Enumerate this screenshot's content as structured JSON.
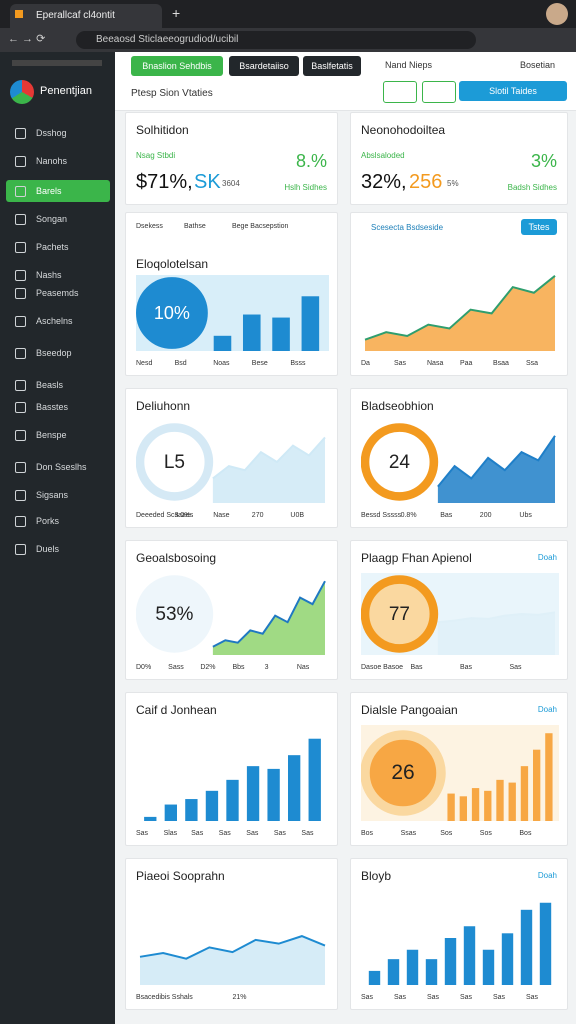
{
  "browser": {
    "tab_title": "Eperallcaf cl4ontit",
    "url": "Beeaosd Sticlaeeogrudiod/ucibil"
  },
  "sidebar": {
    "brand": "Penentjian",
    "items": [
      "Dsshog",
      "Nanohs",
      "Barels",
      "Songan",
      "Pachets",
      "Nashs",
      "Peasemds",
      "Aschelns",
      "Bseedop",
      "Beasls",
      "Basstes",
      "Benspe",
      "Don Sseslhs",
      "Sigsans",
      "Porks",
      "Duels"
    ],
    "active": 2
  },
  "toolbar": {
    "buttons": [
      "Bnaslion Sehdbis",
      "Bsardetaiiso",
      "Baslfetatis"
    ],
    "search": "Nand Nieps",
    "account": "Bosetian",
    "subtitle": "Ptesp Sion Vtaties",
    "action": "Slotil Taides"
  },
  "kpis": [
    {
      "title": "Solhitidon",
      "label": "Nsag Stbdi",
      "value_a": "$71%,",
      "value_b": "SK",
      "sub": "3604",
      "delta": "8.%",
      "note": "Hslh Sidhes"
    },
    {
      "title": "Neonohodoiltea",
      "label": "Abslsaloded",
      "value_a": "32%,",
      "value_b": "256",
      "sub": "5%",
      "delta": "3%",
      "note": "Badsh Sidhes"
    }
  ],
  "cards": [
    {
      "title": "Eloqolotelsan",
      "filters": [
        "Dsekess",
        "Bathse",
        "Bege Bacsepstion"
      ],
      "chart": {
        "kind": "bars",
        "gauge": {
          "label": "10%",
          "fill": "#1e8bd1",
          "ring": "#1e8bd1",
          "text": "#ffffff"
        },
        "values": [
          10,
          24,
          22,
          36
        ],
        "color": "#1e8bd1",
        "bg": "#d8eef9",
        "ylim": [
          0,
          50
        ]
      },
      "legend": [
        "Nesd",
        "Bsd",
        "Noas",
        "Bese",
        "Bsss"
      ]
    },
    {
      "title": "Scesecta Bsdseside",
      "button": "Tstes",
      "chart": {
        "kind": "area",
        "values": [
          12,
          20,
          16,
          28,
          24,
          44,
          40,
          68,
          62,
          80
        ],
        "color": "#f7a744",
        "line": "#2f9e6e",
        "bg": "#ffffff",
        "ylim": [
          0,
          100
        ]
      },
      "legend": [
        "Da",
        "Sas",
        "Nasa",
        "Paa",
        "Bsaa",
        "Ssa"
      ]
    },
    {
      "title": "Deliuhonn",
      "chart": {
        "kind": "area",
        "gauge": {
          "label": "L5",
          "fill": "#ffffff",
          "ring": "#d5e9f5",
          "text": "#222222"
        },
        "values": [
          30,
          45,
          40,
          62,
          50,
          70,
          58,
          80
        ],
        "color": "#cfe9f6",
        "line": "#cfe9f6",
        "bg": "#ffffff",
        "ylim": [
          0,
          100
        ]
      },
      "legend": [
        "Deeeded Scsaaes",
        "3.0%",
        "Nase",
        "270",
        "U0B"
      ]
    },
    {
      "title": "Bladseobhion",
      "chart": {
        "kind": "area",
        "gauge": {
          "label": "24",
          "fill": "#ffffff",
          "ring": "#f39a1f",
          "text": "#222222"
        },
        "values": [
          20,
          45,
          30,
          55,
          40,
          62,
          52,
          82
        ],
        "color": "#1f7fc8",
        "line": "#1f7fc8",
        "bg": "#ffffff",
        "ylim": [
          0,
          100
        ]
      },
      "legend": [
        "Bessd Sssss",
        "0.8%",
        "Bas",
        "200",
        "Ubs"
      ]
    },
    {
      "title": "Geoalsbosoing",
      "chart": {
        "kind": "area",
        "gauge": {
          "label": "53%",
          "fill": "#eef6fb",
          "ring": "#eef6fb",
          "text": "#222222"
        },
        "values": [
          10,
          18,
          15,
          30,
          26,
          48,
          40,
          70,
          62,
          90
        ],
        "color": "#8fd36f",
        "line": "#1f78c2",
        "bg": "#ffffff",
        "ylim": [
          0,
          100
        ]
      },
      "legend": [
        "D0%",
        "Sass",
        "D2%",
        "Bbs",
        "3",
        "Nas"
      ]
    },
    {
      "title": "Plaagp Fhan Apienol",
      "link": "Doah",
      "chart": {
        "kind": "area",
        "gauge": {
          "label": "77",
          "fill": "#fad8a0",
          "ring": "#f39a1f",
          "text": "#222222"
        },
        "values": [
          40,
          42,
          45,
          44,
          48,
          50,
          49,
          52
        ],
        "color": "#dff0f8",
        "line": "#dff0f8",
        "bg": "#e9f5fb",
        "ylim": [
          0,
          100
        ]
      },
      "legend": [
        "Dasoe Basoe",
        "Bas",
        "Bas",
        "Sas"
      ]
    },
    {
      "title": "Caif d Jonhean",
      "chart": {
        "kind": "bars",
        "values": [
          3,
          12,
          16,
          22,
          30,
          40,
          38,
          48,
          60
        ],
        "color": "#1e8bd1",
        "bg": "#ffffff",
        "ylim": [
          0,
          70
        ]
      },
      "legend": [
        "Sas",
        "Slas",
        "Sas",
        "Sas",
        "Sas",
        "Sas",
        "Sas"
      ]
    },
    {
      "title": "Dialsle Pangoaian",
      "link": "Doah",
      "chart": {
        "kind": "bars",
        "gauge": {
          "label": "26",
          "fill": "#f7a744",
          "ring": "#fad8a0",
          "text": "#222222"
        },
        "values": [
          20,
          18,
          24,
          22,
          30,
          28,
          40,
          52,
          64
        ],
        "color": "#f7a744",
        "bg": "#fdf3e2",
        "ylim": [
          0,
          70
        ]
      },
      "legend": [
        "Bos",
        "Ssas",
        "Sos",
        "Sos",
        "Bos"
      ]
    },
    {
      "title": "Piaeoi Sooprahn",
      "chart": {
        "kind": "area",
        "values": [
          30,
          34,
          28,
          40,
          35,
          48,
          44,
          52,
          42
        ],
        "color": "#cfe9f6",
        "line": "#1e8bd1",
        "bg": "#ffffff",
        "ylim": [
          0,
          100
        ]
      },
      "legend": [
        "Bsacedibis Sshals",
        "21%"
      ]
    },
    {
      "title": "Bloyb",
      "link": "Doah",
      "chart": {
        "kind": "bars",
        "values": [
          12,
          22,
          30,
          22,
          40,
          50,
          30,
          44,
          64,
          70
        ],
        "color": "#1e8bd1",
        "bg": "#ffffff",
        "ylim": [
          0,
          80
        ]
      },
      "legend": [
        "Sas",
        "Sas",
        "Sas",
        "Sas",
        "Sas",
        "Sas"
      ]
    }
  ]
}
